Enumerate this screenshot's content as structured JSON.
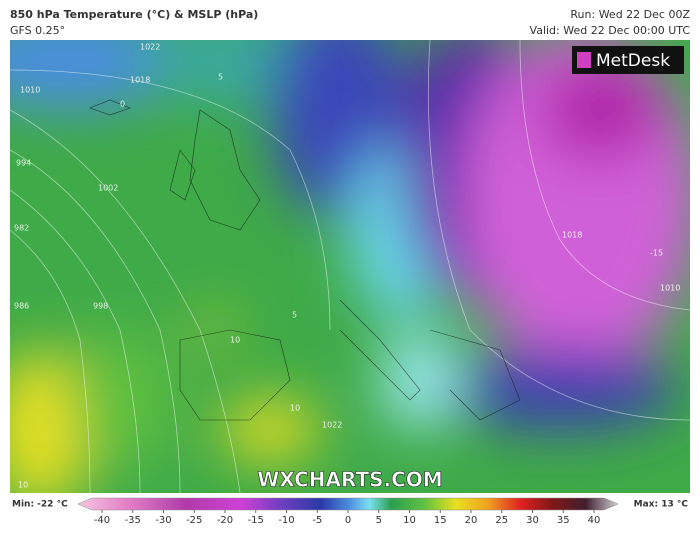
{
  "header": {
    "title": "850 hPa Temperature (°C) & MSLP (hPa)",
    "model": "GFS 0.25°",
    "run": "Run: Wed 22 Dec 00Z",
    "valid": "Valid: Wed 22 Dec 00:00 UTC"
  },
  "logo": "MetDesk",
  "watermark": "WXCHARTS.COM",
  "map_labels": [
    1022,
    1018,
    1010,
    994,
    1002,
    982,
    986,
    998,
    1022,
    1018,
    1010,
    10,
    10,
    10,
    5,
    0,
    -15,
    5
  ],
  "legend": {
    "min": "Min: -22 °C",
    "max": "Max: 13 °C",
    "ticks": [
      -40,
      -35,
      -30,
      -25,
      -20,
      -15,
      -10,
      -5,
      0,
      5,
      10,
      15,
      20,
      25,
      30,
      35,
      40
    ]
  }
}
